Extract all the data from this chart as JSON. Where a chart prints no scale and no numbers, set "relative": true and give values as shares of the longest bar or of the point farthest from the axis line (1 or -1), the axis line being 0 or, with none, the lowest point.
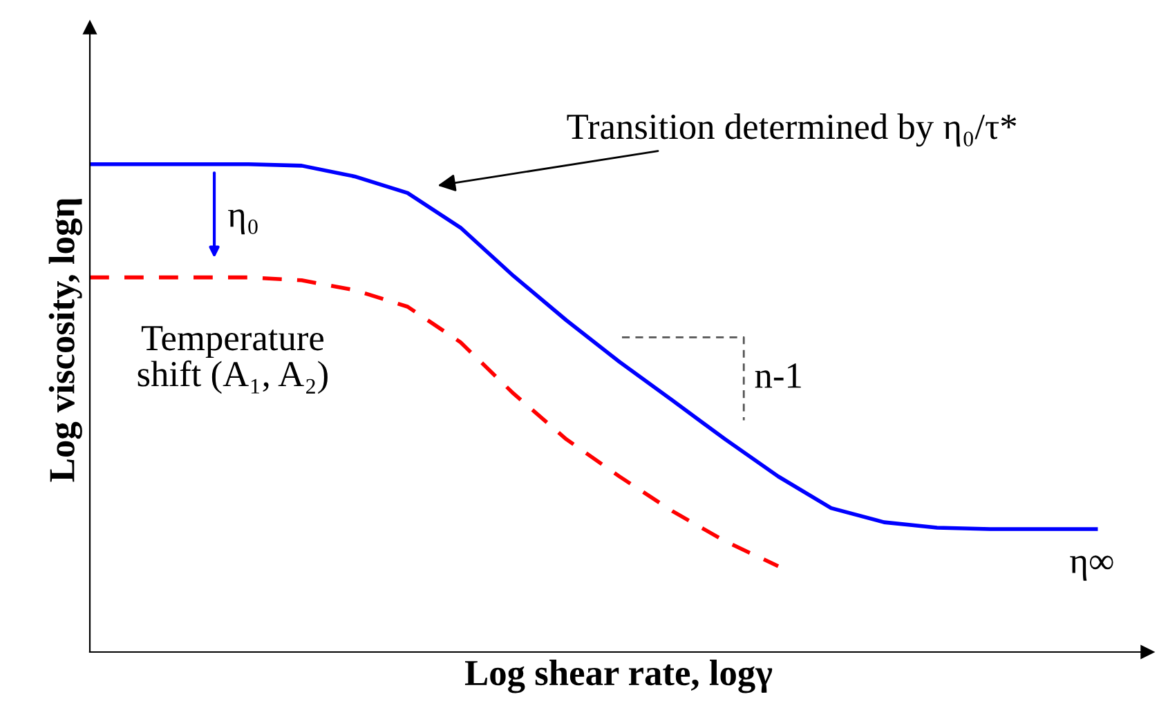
{
  "chart_data": {
    "type": "line",
    "relative": true,
    "xlabel": "Log shear rate, logγ",
    "ylabel": "Log viscosity, logη",
    "categories": [
      null,
      null,
      null,
      null,
      null,
      null,
      null,
      null,
      null,
      null,
      null,
      null,
      null,
      null,
      null,
      null,
      null,
      null,
      null,
      null
    ],
    "series": [
      {
        "color": "#0000ff",
        "line_style": "solid",
        "values": [
          1,
          1,
          1,
          1,
          0.997,
          0.975,
          0.941,
          0.87,
          0.771,
          0.68,
          0.595,
          0.516,
          0.436,
          0.36,
          0.295,
          0.266,
          0.255,
          0.252,
          0.252,
          0.252
        ]
      },
      {
        "color": "#ff0000",
        "line_style": "dashed",
        "values": [
          0.768,
          0.768,
          0.768,
          0.768,
          0.762,
          0.742,
          0.708,
          0.635,
          0.53,
          0.436,
          0.36,
          0.289,
          0.227,
          0.176,
          null,
          null,
          null,
          null,
          null,
          null
        ]
      }
    ],
    "annotations": [
      "Transition determined by η₀/τ*",
      "η₀",
      "Temperature\nshift (A₁, A₂)",
      "n-1",
      "η∞"
    ],
    "grid": false,
    "legend": false,
    "tick_labels": false
  }
}
